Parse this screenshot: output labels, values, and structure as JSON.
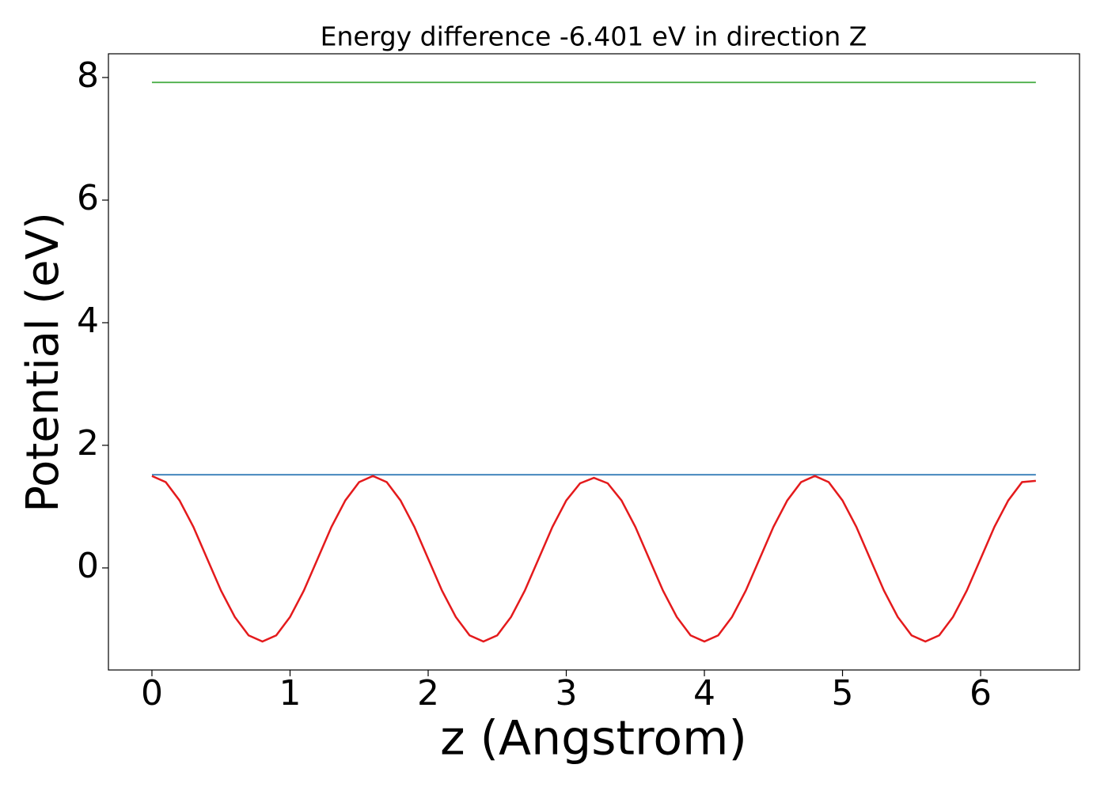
{
  "chart_data": {
    "type": "line",
    "title": "Energy difference -6.401 eV in direction Z",
    "xlabel": "z (Angstrom)",
    "ylabel": "Potential (eV)",
    "xlim": [
      -0.315,
      6.716
    ],
    "ylim": [
      -1.665,
      8.387
    ],
    "xticks": [
      0,
      1,
      2,
      3,
      4,
      5,
      6
    ],
    "yticks": [
      0,
      2,
      4,
      6,
      8
    ],
    "grid": false,
    "series": [
      {
        "color": "#e41a1c",
        "x": [
          0,
          0.1,
          0.2,
          0.3,
          0.4,
          0.5,
          0.6,
          0.7,
          0.8,
          0.9,
          1.0,
          1.1,
          1.2,
          1.3,
          1.4,
          1.5,
          1.6,
          1.7,
          1.8,
          1.9,
          2.0,
          2.1,
          2.2,
          2.3,
          2.4,
          2.5,
          2.6,
          2.7,
          2.8,
          2.9,
          3.0,
          3.1,
          3.2,
          3.3,
          3.4,
          3.5,
          3.6,
          3.7,
          3.8,
          3.9,
          4.0,
          4.1,
          4.2,
          4.3,
          4.4,
          4.5,
          4.6,
          4.7,
          4.8,
          4.9,
          5.0,
          5.1,
          5.2,
          5.3,
          5.4,
          5.5,
          5.6,
          5.7,
          5.8,
          5.9,
          6.0,
          6.1,
          6.2,
          6.3,
          6.4
        ],
        "values": [
          1.5,
          1.4,
          1.1,
          0.67,
          0.15,
          -0.37,
          -0.8,
          -1.1,
          -1.2,
          -1.1,
          -0.8,
          -0.37,
          0.15,
          0.67,
          1.1,
          1.4,
          1.5,
          1.4,
          1.1,
          0.67,
          0.15,
          -0.37,
          -0.8,
          -1.1,
          -1.2,
          -1.1,
          -0.8,
          -0.37,
          0.15,
          0.67,
          1.1,
          1.38,
          1.47,
          1.38,
          1.1,
          0.67,
          0.15,
          -0.37,
          -0.8,
          -1.1,
          -1.2,
          -1.1,
          -0.8,
          -0.37,
          0.15,
          0.67,
          1.1,
          1.4,
          1.5,
          1.4,
          1.1,
          0.67,
          0.15,
          -0.37,
          -0.8,
          -1.1,
          -1.2,
          -1.1,
          -0.8,
          -0.37,
          0.15,
          0.67,
          1.1,
          1.4,
          1.42
        ]
      },
      {
        "color": "#377eb8",
        "x": [
          0,
          6.4
        ],
        "values": [
          1.52,
          1.52
        ]
      },
      {
        "color": "#4daf4a",
        "x": [
          0,
          6.4
        ],
        "values": [
          7.92,
          7.92
        ]
      }
    ]
  }
}
